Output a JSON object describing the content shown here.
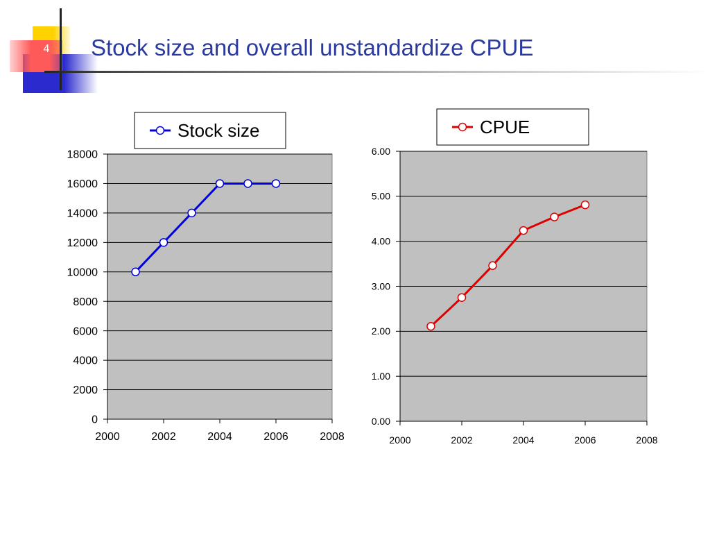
{
  "slide": {
    "number": "4",
    "title": "Stock size and overall unstandardize CPUE"
  },
  "chart_data": [
    {
      "type": "line",
      "x": [
        2001,
        2002,
        2003,
        2004,
        2005,
        2006
      ],
      "series": [
        {
          "name": "Stock size",
          "values": [
            10000,
            12000,
            14000,
            16000,
            16000,
            16000
          ],
          "color": "#0000dd"
        }
      ],
      "xlim": [
        2000,
        2008
      ],
      "ylim": [
        0,
        18000
      ],
      "xticks": [
        "2000",
        "2002",
        "2004",
        "2006",
        "2008"
      ],
      "yticks": [
        "0",
        "2000",
        "4000",
        "6000",
        "8000",
        "10000",
        "12000",
        "14000",
        "16000",
        "18000"
      ],
      "grid": true,
      "legend": "top"
    },
    {
      "type": "line",
      "x": [
        2001,
        2002,
        2003,
        2004,
        2005,
        2006
      ],
      "series": [
        {
          "name": "CPUE",
          "values": [
            2.11,
            2.75,
            3.46,
            4.24,
            4.54,
            4.81
          ],
          "color": "#dd0000"
        }
      ],
      "xlim": [
        2000,
        2008
      ],
      "ylim": [
        0,
        6
      ],
      "xticks": [
        "2000",
        "2002",
        "2004",
        "2006",
        "2008"
      ],
      "yticks": [
        "0.00",
        "1.00",
        "2.00",
        "3.00",
        "4.00",
        "5.00",
        "6.00"
      ],
      "grid": true,
      "legend": "top"
    }
  ]
}
